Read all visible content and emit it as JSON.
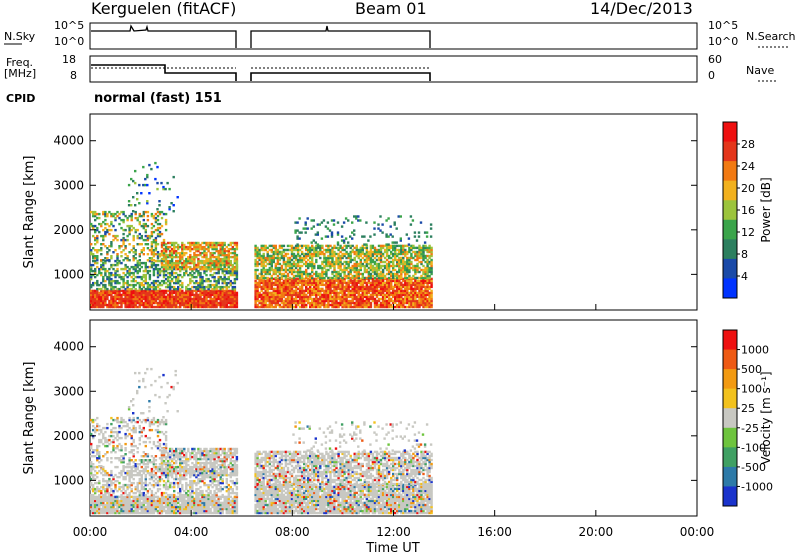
{
  "header": {
    "station": "Kerguelen (fitACF)",
    "beam": "Beam 01",
    "date": "14/Dec/2013"
  },
  "panels": {
    "nsky_label": "N.Sky",
    "nsearch_label": "N.Search",
    "freq_label_top": "Freq.",
    "freq_label_bottom": "[MHz]",
    "nave_label": "Nave",
    "cpid_label": "CPID",
    "cpid_value": "normal (fast) 151",
    "noise_ticks_left": [
      "10^5",
      "10^0"
    ],
    "noise_ticks_right": [
      "10^5",
      "10^0"
    ],
    "freq_ticks_left": [
      "18",
      "8"
    ],
    "nave_ticks_right": [
      "60",
      "0"
    ]
  },
  "chart_data": [
    {
      "type": "heatmap",
      "name": "power",
      "ylabel": "Slant Range [km]",
      "xlabel": "",
      "xlim": [
        0,
        24
      ],
      "ylim": [
        200,
        4600
      ],
      "yticks": [
        1000,
        2000,
        3000,
        4000
      ],
      "colorbar": {
        "label": "Power [dB]",
        "ticks": [
          "28",
          "24",
          "20",
          "16",
          "12",
          "8",
          "4"
        ],
        "colors": [
          "#0033ff",
          "#1a4aa8",
          "#2c7f5f",
          "#3aa44a",
          "#9cc43c",
          "#f2b11e",
          "#f27a12",
          "#e4361b",
          "#ee0f0f"
        ]
      },
      "data_gaps": [
        [
          5.85,
          6.45
        ],
        [
          13.5,
          24
        ]
      ]
    },
    {
      "type": "heatmap",
      "name": "velocity",
      "ylabel": "Slant Range [km]",
      "xlabel": "Time UT",
      "xlim": [
        0,
        24
      ],
      "ylim": [
        200,
        4600
      ],
      "yticks": [
        1000,
        2000,
        3000,
        4000
      ],
      "xticks": [
        "00:00",
        "04:00",
        "08:00",
        "12:00",
        "16:00",
        "20:00",
        "00:00"
      ],
      "colorbar": {
        "label": "Velocity [m s⁻¹]",
        "ticks": [
          "1000",
          "500",
          "100",
          "25",
          "-25",
          "-100",
          "-500",
          "-1000"
        ],
        "colors": [
          "#1a33cc",
          "#2d7aa8",
          "#3fa063",
          "#6ec43e",
          "#c8c8c2",
          "#f2c21e",
          "#f29a12",
          "#ee5a14",
          "#ee1010"
        ]
      },
      "data_gaps": [
        [
          5.85,
          6.45
        ],
        [
          13.5,
          24
        ]
      ]
    }
  ]
}
